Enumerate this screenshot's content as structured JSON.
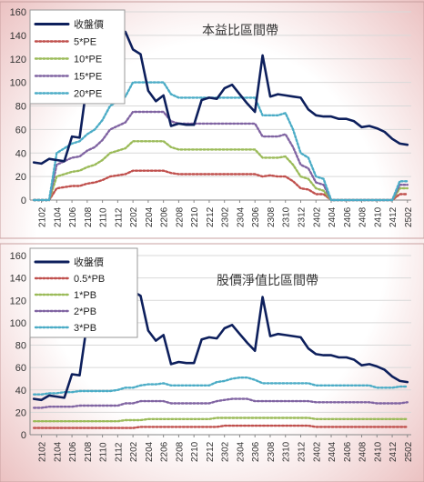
{
  "chart_data": [
    {
      "type": "line",
      "title": "本益比區間帶",
      "ylim": [
        0,
        160
      ],
      "yticks": [
        0,
        20,
        40,
        60,
        80,
        100,
        120,
        140,
        160
      ],
      "grid": true,
      "legend_placement": "top-left",
      "x_tick_labels": [
        "2102",
        "2104",
        "2106",
        "2108",
        "2110",
        "2112",
        "2202",
        "2204",
        "2206",
        "2208",
        "2210",
        "2212",
        "2302",
        "2304",
        "2306",
        "2308",
        "2310",
        "2312",
        "2402",
        "2404",
        "2406",
        "2408",
        "2410",
        "2412",
        "2502"
      ],
      "x_start": "2101",
      "series": [
        {
          "name": "收盤價",
          "color": "#0d1f5c",
          "style": "solid",
          "values": [
            32,
            31,
            35,
            34,
            33,
            54,
            53,
            100,
            100,
            101,
            125,
            140,
            143,
            128,
            124,
            93,
            84,
            89,
            63,
            65,
            64,
            64,
            85,
            87,
            86,
            95,
            98,
            90,
            82,
            75,
            123,
            88,
            90,
            89,
            88,
            87,
            77,
            72,
            71,
            71,
            69,
            69,
            67,
            62,
            63,
            61,
            58,
            52,
            48,
            47
          ]
        },
        {
          "name": "5*PE",
          "color": "#c0504d",
          "style": "dotted",
          "values": [
            0,
            0,
            0,
            10,
            11,
            12,
            12,
            14,
            15,
            17,
            20,
            21,
            22,
            25,
            25,
            25,
            25,
            25,
            23,
            22,
            22,
            22,
            22,
            22,
            22,
            22,
            22,
            22,
            22,
            22,
            20,
            21,
            20,
            20,
            16,
            10,
            9,
            5,
            5,
            0,
            0,
            0,
            0,
            0,
            0,
            0,
            0,
            0,
            5,
            5
          ]
        },
        {
          "name": "10*PE",
          "color": "#9bbb59",
          "style": "dotted",
          "values": [
            0,
            0,
            0,
            20,
            22,
            24,
            25,
            28,
            30,
            34,
            40,
            42,
            44,
            50,
            50,
            50,
            50,
            50,
            45,
            43,
            43,
            43,
            43,
            43,
            43,
            43,
            43,
            43,
            43,
            43,
            36,
            36,
            36,
            37,
            30,
            20,
            18,
            10,
            8,
            0,
            0,
            0,
            0,
            0,
            0,
            0,
            0,
            0,
            10,
            10
          ]
        },
        {
          "name": "15*PE",
          "color": "#8064a2",
          "style": "dotted",
          "values": [
            0,
            0,
            0,
            30,
            33,
            36,
            37,
            42,
            45,
            51,
            60,
            63,
            66,
            75,
            75,
            75,
            75,
            75,
            67,
            65,
            65,
            65,
            65,
            65,
            65,
            65,
            65,
            65,
            65,
            65,
            54,
            54,
            54,
            56,
            45,
            30,
            27,
            15,
            13,
            0,
            0,
            0,
            0,
            0,
            0,
            0,
            0,
            0,
            13,
            13
          ]
        },
        {
          "name": "20*PE",
          "color": "#4bacc6",
          "style": "dotted",
          "values": [
            0,
            0,
            0,
            40,
            44,
            48,
            50,
            56,
            60,
            68,
            80,
            84,
            88,
            100,
            100,
            100,
            100,
            100,
            90,
            87,
            87,
            87,
            87,
            87,
            87,
            87,
            87,
            87,
            87,
            87,
            72,
            72,
            72,
            74,
            60,
            40,
            36,
            20,
            18,
            0,
            0,
            0,
            0,
            0,
            0,
            0,
            0,
            0,
            16,
            16
          ]
        }
      ]
    },
    {
      "type": "line",
      "title": "股價淨值比區間帶",
      "ylim": [
        0,
        160
      ],
      "yticks": [
        0,
        20,
        40,
        60,
        80,
        100,
        120,
        140,
        160
      ],
      "grid": true,
      "legend_placement": "top-left",
      "x_tick_labels": [
        "2102",
        "2104",
        "2106",
        "2108",
        "2110",
        "2112",
        "2202",
        "2204",
        "2206",
        "2208",
        "2210",
        "2212",
        "2302",
        "2304",
        "2306",
        "2308",
        "2310",
        "2312",
        "2402",
        "2404",
        "2406",
        "2408",
        "2410",
        "2412",
        "2502"
      ],
      "x_start": "2101",
      "series": [
        {
          "name": "收盤價",
          "color": "#0d1f5c",
          "style": "solid",
          "values": [
            32,
            31,
            35,
            34,
            33,
            54,
            53,
            100,
            100,
            101,
            125,
            140,
            143,
            128,
            124,
            93,
            84,
            89,
            63,
            65,
            64,
            64,
            85,
            87,
            86,
            95,
            98,
            90,
            82,
            75,
            123,
            88,
            90,
            89,
            88,
            87,
            77,
            72,
            71,
            71,
            69,
            69,
            67,
            62,
            63,
            61,
            58,
            52,
            48,
            47
          ]
        },
        {
          "name": "0.5*PB",
          "color": "#c0504d",
          "style": "dotted",
          "values": [
            6,
            6,
            6,
            6,
            6,
            6,
            6,
            6,
            6,
            6,
            6,
            6,
            6,
            6,
            7,
            7,
            7,
            7,
            7,
            7,
            7,
            7,
            7,
            7,
            7,
            8,
            8,
            8,
            8,
            8,
            8,
            8,
            8,
            8,
            8,
            8,
            8,
            7,
            7,
            7,
            7,
            7,
            7,
            7,
            7,
            7,
            7,
            7,
            7,
            7
          ]
        },
        {
          "name": "1*PB",
          "color": "#9bbb59",
          "style": "dotted",
          "values": [
            12,
            12,
            12,
            12,
            12,
            12,
            12,
            12,
            12,
            12,
            12,
            12,
            13,
            13,
            13,
            14,
            14,
            14,
            14,
            14,
            14,
            14,
            14,
            14,
            15,
            15,
            15,
            15,
            15,
            15,
            15,
            15,
            15,
            15,
            15,
            15,
            15,
            14,
            14,
            14,
            14,
            14,
            14,
            14,
            14,
            14,
            14,
            14,
            14,
            14
          ]
        },
        {
          "name": "2*PB",
          "color": "#8064a2",
          "style": "dotted",
          "values": [
            24,
            24,
            25,
            25,
            25,
            25,
            26,
            26,
            26,
            26,
            26,
            26,
            28,
            28,
            30,
            30,
            30,
            30,
            28,
            28,
            28,
            28,
            28,
            28,
            30,
            31,
            32,
            32,
            32,
            30,
            30,
            30,
            30,
            30,
            30,
            30,
            30,
            29,
            29,
            29,
            29,
            29,
            29,
            29,
            29,
            28,
            28,
            28,
            28,
            29
          ]
        },
        {
          "name": "3*PB",
          "color": "#4bacc6",
          "style": "dotted",
          "values": [
            36,
            36,
            37,
            37,
            38,
            38,
            39,
            39,
            39,
            39,
            39,
            40,
            42,
            42,
            44,
            45,
            45,
            46,
            44,
            44,
            44,
            44,
            44,
            44,
            47,
            48,
            50,
            51,
            51,
            49,
            46,
            46,
            46,
            46,
            46,
            46,
            46,
            44,
            44,
            44,
            44,
            44,
            44,
            44,
            44,
            42,
            42,
            42,
            43,
            43
          ]
        }
      ]
    }
  ]
}
